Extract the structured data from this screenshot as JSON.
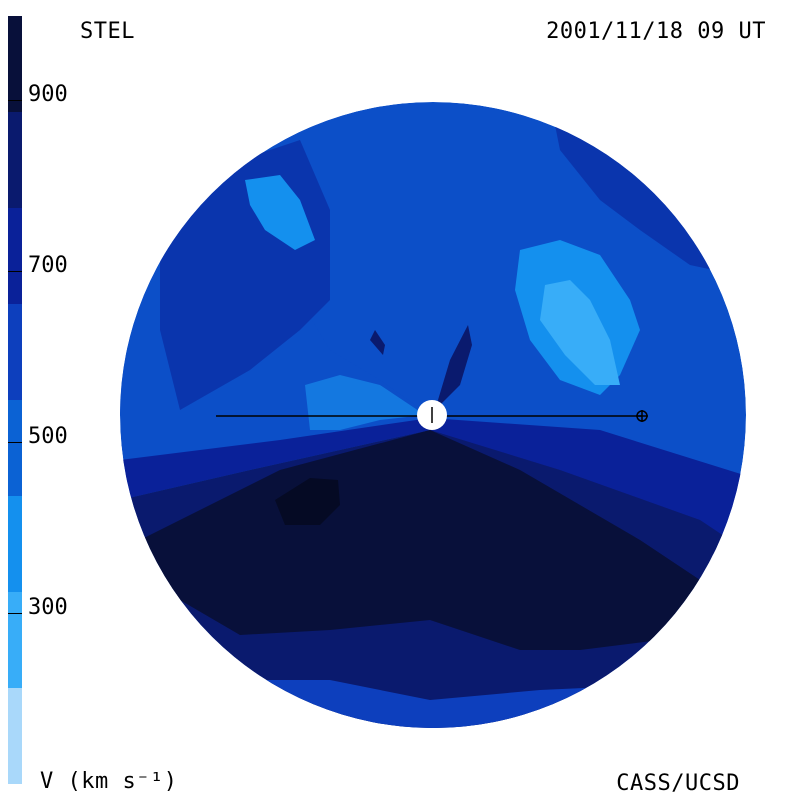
{
  "header": {
    "origin": "STEL",
    "date": "2001/11/18 09 UT"
  },
  "footer": {
    "unit": "V (km s⁻¹)",
    "credit": "CASS/UCSD"
  },
  "colorbar": {
    "range": [
      200,
      1100
    ],
    "tick_labels": [
      "900",
      "700",
      "500",
      "300"
    ],
    "tick_values": [
      900,
      700,
      500,
      300
    ],
    "segments": [
      "#08103a",
      "#0a1a6e",
      "#0a2199",
      "#0d3fbd",
      "#0b62d4",
      "#1490ee",
      "#38adf8",
      "#a9d8fa"
    ]
  },
  "map": {
    "disk_color": "#0c4fc8",
    "sun_color": "#ffffff",
    "line_color": "#000000",
    "regions": [
      {
        "name": "slow-wind-high-north",
        "color": "#0b62d4"
      },
      {
        "name": "slow-wind-north-pocket",
        "color": "#1490ee"
      },
      {
        "name": "fast-wind-south",
        "color": "#0a1a6e"
      },
      {
        "name": "fast-wind-core",
        "color": "#08103a"
      },
      {
        "name": "intermediate-band",
        "color": "#0a2199"
      }
    ]
  }
}
